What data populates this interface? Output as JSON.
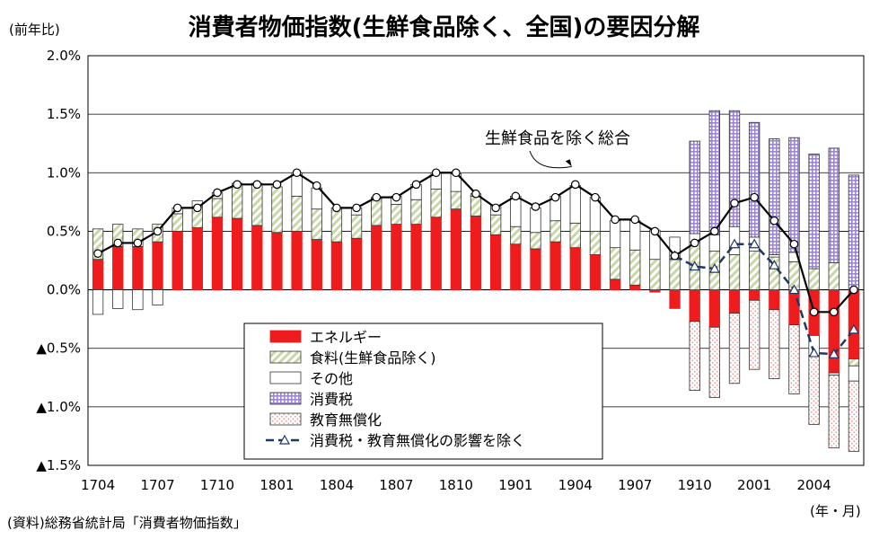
{
  "chart_data": {
    "type": "bar",
    "title": "消費者物価指数(生鮮食品除く、全国)の要因分解",
    "ylabel": "(前年比)",
    "xlabel": "(年・月)",
    "source": "(資料)総務省統計局「消費者物価指数」",
    "annotation": "生鮮食品を除く総合",
    "ylim": [
      -1.5,
      2.0
    ],
    "yticks": [
      {
        "value": 2.0,
        "label": "2.0%"
      },
      {
        "value": 1.5,
        "label": "1.5%"
      },
      {
        "value": 1.0,
        "label": "1.0%"
      },
      {
        "value": 0.5,
        "label": "0.5%"
      },
      {
        "value": 0.0,
        "label": "0.0%"
      },
      {
        "value": -0.5,
        "label": "▲0.5%"
      },
      {
        "value": -1.0,
        "label": "▲1.0%"
      },
      {
        "value": -1.5,
        "label": "▲1.5%"
      }
    ],
    "xtick_labels": [
      {
        "index": 0,
        "label": "1704"
      },
      {
        "index": 3,
        "label": "1707"
      },
      {
        "index": 6,
        "label": "1710"
      },
      {
        "index": 9,
        "label": "1801"
      },
      {
        "index": 12,
        "label": "1804"
      },
      {
        "index": 15,
        "label": "1807"
      },
      {
        "index": 18,
        "label": "1810"
      },
      {
        "index": 21,
        "label": "1901"
      },
      {
        "index": 24,
        "label": "1904"
      },
      {
        "index": 27,
        "label": "1907"
      },
      {
        "index": 30,
        "label": "1910"
      },
      {
        "index": 33,
        "label": "2001"
      },
      {
        "index": 36,
        "label": "2004"
      }
    ],
    "categories": [
      "1704",
      "1705",
      "1706",
      "1707",
      "1708",
      "1709",
      "1710",
      "1711",
      "1712",
      "1801",
      "1802",
      "1803",
      "1804",
      "1805",
      "1806",
      "1807",
      "1808",
      "1809",
      "1810",
      "1811",
      "1812",
      "1901",
      "1902",
      "1903",
      "1904",
      "1905",
      "1906",
      "1907",
      "1908",
      "1909",
      "1910",
      "1911",
      "1912",
      "2001",
      "2002",
      "2003",
      "2004",
      "2005",
      "2006"
    ],
    "legend_position": "bottom-left",
    "grid": true,
    "series": [
      {
        "name": "エネルギー",
        "color": "#ee1c1c",
        "values": [
          0.26,
          0.37,
          0.37,
          0.41,
          0.5,
          0.53,
          0.62,
          0.61,
          0.55,
          0.49,
          0.5,
          0.43,
          0.41,
          0.44,
          0.55,
          0.56,
          0.56,
          0.62,
          0.69,
          0.63,
          0.47,
          0.39,
          0.35,
          0.41,
          0.36,
          0.3,
          0.09,
          0.04,
          -0.02,
          -0.16,
          -0.27,
          -0.32,
          -0.2,
          -0.09,
          -0.17,
          -0.3,
          -0.39,
          -0.71,
          -0.59
        ]
      },
      {
        "name": "食料(生鮮食品除く)",
        "color": "#cfdcb0",
        "values": [
          0.26,
          0.19,
          0.15,
          0.15,
          0.15,
          0.18,
          0.16,
          0.3,
          0.36,
          0.39,
          0.3,
          0.26,
          0.29,
          0.2,
          0.23,
          0.17,
          0.21,
          0.24,
          0.15,
          0.17,
          0.17,
          0.15,
          0.14,
          0.18,
          0.21,
          0.2,
          0.27,
          0.3,
          0.26,
          0.29,
          0.41,
          0.33,
          0.3,
          0.33,
          0.28,
          0.24,
          0.18,
          0.23,
          -0.06
        ]
      },
      {
        "name": "その他",
        "color": "#ffffff",
        "values": [
          -0.21,
          -0.16,
          -0.17,
          -0.13,
          0.05,
          0.05,
          0.05,
          0.0,
          0.0,
          0.0,
          0.2,
          0.18,
          0.0,
          0.06,
          0.01,
          0.07,
          0.13,
          0.14,
          0.15,
          0.02,
          0.08,
          0.26,
          0.21,
          0.21,
          0.32,
          0.29,
          0.23,
          0.25,
          0.25,
          0.16,
          0.07,
          0.14,
          0.24,
          0.12,
          0.02,
          0.08,
          -0.17,
          -0.02,
          -0.13
        ]
      },
      {
        "name": "消費税",
        "color": "#ae9bd6",
        "values": [
          0,
          0,
          0,
          0,
          0,
          0,
          0,
          0,
          0,
          0,
          0,
          0,
          0,
          0,
          0,
          0,
          0,
          0,
          0,
          0,
          0,
          0,
          0,
          0,
          0,
          0,
          0,
          0,
          0,
          0,
          0.79,
          1.06,
          0.99,
          0.98,
          0.99,
          0.98,
          0.98,
          0.98,
          0.98
        ]
      },
      {
        "name": "教育無償化",
        "color": "#f4c8c8",
        "values": [
          0,
          0,
          0,
          0,
          0,
          0,
          0,
          0,
          0,
          0,
          0,
          0,
          0,
          0,
          0,
          0,
          0,
          0,
          0,
          0,
          0,
          0,
          0,
          0,
          0,
          0,
          0,
          0,
          0,
          0,
          -0.59,
          -0.6,
          -0.6,
          -0.59,
          -0.59,
          -0.59,
          -0.59,
          -0.62,
          -0.6
        ]
      },
      {
        "name": "消費税・教育無償化の影響を除く",
        "type": "line",
        "color": "#1f3864",
        "values": [
          null,
          null,
          null,
          null,
          null,
          null,
          null,
          null,
          null,
          null,
          null,
          null,
          null,
          null,
          null,
          null,
          null,
          null,
          null,
          null,
          null,
          null,
          null,
          null,
          null,
          null,
          null,
          null,
          null,
          0.29,
          0.2,
          0.18,
          0.39,
          0.39,
          0.21,
          0.0,
          -0.54,
          -0.55,
          -0.34
        ]
      },
      {
        "name": "生鮮食品を除く総合",
        "type": "line",
        "color": "#000000",
        "values": [
          0.31,
          0.4,
          0.4,
          0.5,
          0.7,
          0.7,
          0.83,
          0.9,
          0.9,
          0.9,
          1.0,
          0.89,
          0.7,
          0.7,
          0.79,
          0.79,
          0.9,
          1.0,
          1.0,
          0.82,
          0.7,
          0.8,
          0.71,
          0.79,
          0.9,
          0.79,
          0.6,
          0.6,
          0.5,
          0.29,
          0.4,
          0.5,
          0.74,
          0.79,
          0.59,
          0.39,
          -0.19,
          -0.19,
          0.0
        ]
      }
    ]
  }
}
